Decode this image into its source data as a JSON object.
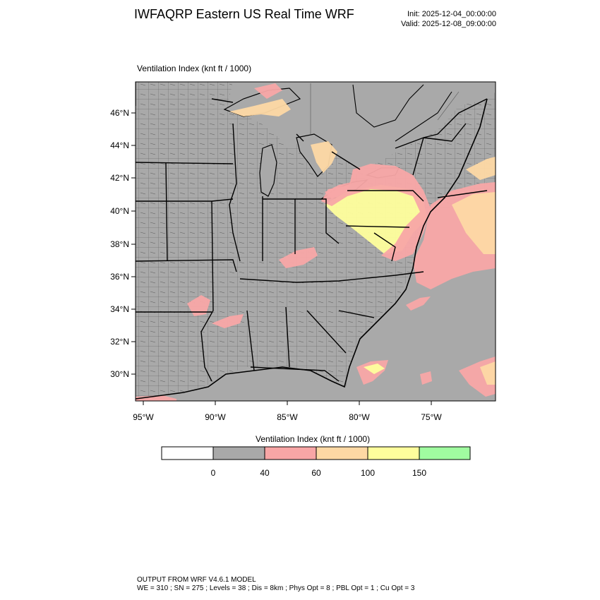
{
  "header": {
    "title": "IWFAQRP Eastern US Real Time WRF",
    "init": "Init: 2025-12-04_00:00:00",
    "valid": "Valid: 2025-12-08_09:00:00"
  },
  "map": {
    "field_label": "Ventilation Index   (knt ft / 1000)",
    "lat_ticks": [
      "46°N",
      "44°N",
      "42°N",
      "40°N",
      "38°N",
      "36°N",
      "34°N",
      "32°N",
      "30°N"
    ],
    "lon_ticks": [
      "95°W",
      "90°W",
      "85°W",
      "80°W",
      "75°W"
    ],
    "background_fill_color": "#a9a9a9",
    "boundary_color": "#000000"
  },
  "legend": {
    "title": "Ventilation Index  (knt ft / 1000)",
    "bins": [
      {
        "color": "#ffffff"
      },
      {
        "color": "#a9a9a9"
      },
      {
        "color": "#f8a6a6"
      },
      {
        "color": "#fdd8a4"
      },
      {
        "color": "#fefe9c"
      },
      {
        "color": "#a0fca0"
      }
    ],
    "breaks": [
      "0",
      "40",
      "60",
      "100",
      "150"
    ]
  },
  "footer": {
    "line1": "OUTPUT FROM WRF V4.6.1 MODEL",
    "line2": "WE = 310 ; SN = 275 ; Levels = 38 ; Dis = 8km ; Phys Opt = 8 ; PBL Opt = 1 ; Cu Opt = 3"
  }
}
